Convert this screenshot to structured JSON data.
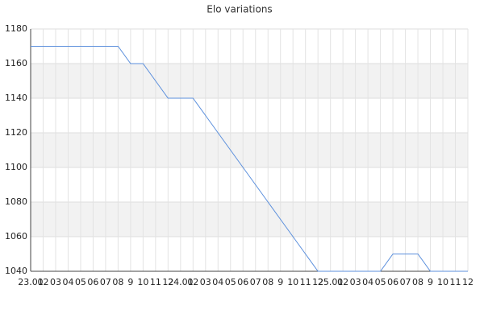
{
  "chart_data": {
    "type": "line",
    "title": "Elo variations",
    "categories": [
      "23.01",
      "02",
      "03",
      "04",
      "05",
      "06",
      "07",
      "08",
      "9",
      "10",
      "11",
      "12",
      "24.01",
      "02",
      "03",
      "04",
      "05",
      "06",
      "07",
      "08",
      "9",
      "10",
      "11",
      "12",
      "25.01",
      "02",
      "03",
      "04",
      "05",
      "06",
      "07",
      "08",
      "9",
      "10",
      "11",
      "12"
    ],
    "series": [
      {
        "name": "Elo",
        "color": "#5b8fdc",
        "values": [
          1170,
          1170,
          1170,
          1170,
          1170,
          1170,
          1170,
          1170,
          1160,
          1160,
          1150,
          1140,
          1140,
          1140,
          1130,
          1120,
          1110,
          1100,
          1090,
          1080,
          1070,
          1060,
          1050,
          1040,
          1040,
          1040,
          1040,
          1040,
          1040,
          1050,
          1050,
          1050,
          1040,
          1040,
          1040,
          1040
        ]
      }
    ],
    "ylim": [
      1040,
      1180
    ],
    "yticks": [
      1040,
      1060,
      1080,
      1100,
      1120,
      1140,
      1160,
      1180
    ],
    "grid": true
  }
}
